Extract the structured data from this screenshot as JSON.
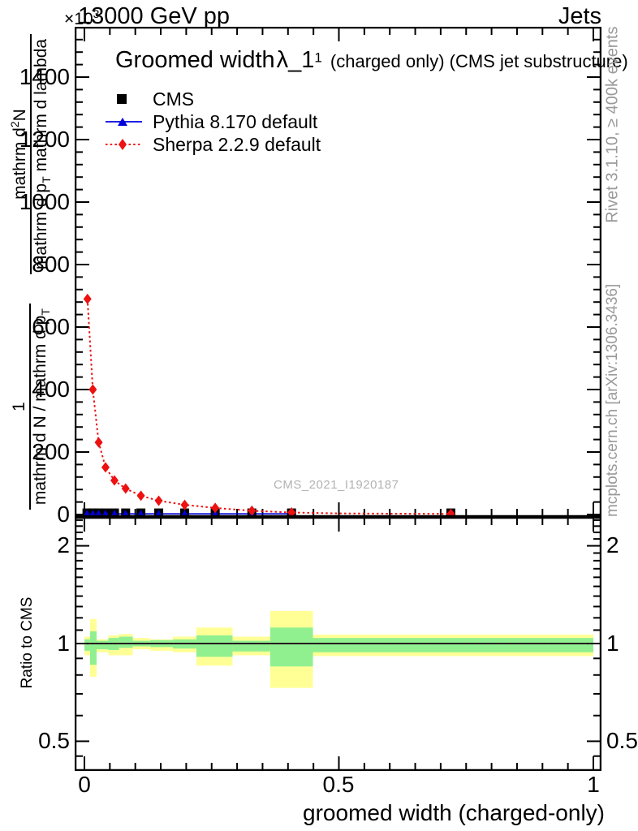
{
  "header": {
    "scale_prefix": "×10",
    "scale_exp": "3",
    "energy": "13000 GeV pp",
    "category": "Jets"
  },
  "plot_title": {
    "main": "Groomed width",
    "symbol": "λ_1",
    "symbol_sup": "1",
    "suffix": "(charged only) (CMS jet substructure)"
  },
  "legend": {
    "items": [
      {
        "label": "CMS",
        "marker": "filled-square",
        "color": "#000000"
      },
      {
        "label": "Pythia 8.170 default",
        "marker": "triangle-on-solid-line",
        "color": "#0000dd"
      },
      {
        "label": "Sherpa 2.2.9 default",
        "marker": "diamond-on-dotted-line",
        "color": "#ee1111"
      }
    ]
  },
  "watermark": "CMS_2021_I1920187",
  "side_notes": {
    "top_right": "Rivet 3.1.10, ≥ 400k events",
    "bottom_right": "mcplots.cern.ch [arXiv:1306.3436]"
  },
  "y_axis": {
    "frac1": {
      "num": "1",
      "den_main": "mathrm d N / mathrm d p",
      "den_sub": "T"
    },
    "frac2": {
      "num_a": "mathrm d",
      "num_sup": "2",
      "num_b": "N",
      "den_a": "mathrm d p",
      "den_sub": "T",
      "den_b": "mathrm d lambda"
    },
    "tick_labels": [
      "1400",
      "1200",
      "1000",
      "800",
      "600",
      "400",
      "200",
      "0"
    ]
  },
  "ratio_axis": {
    "label": "Ratio to CMS",
    "tick_labels": [
      "2",
      "1",
      "0.5"
    ]
  },
  "x_axis": {
    "label": "groomed width (charged-only)",
    "tick_labels": [
      "0",
      "0.5",
      "1"
    ]
  },
  "chart_data": [
    {
      "type": "scatter",
      "panel": "main",
      "title": "Groomed width λ_1^1 (charged only) (CMS jet substructure)",
      "xlabel": "groomed width (charged-only)",
      "ylabel": "1/(dN/dp_T) d²N/(dp_T dlambda), values in ×10³",
      "xlim": [
        -0.019,
        1.016
      ],
      "ylim": [
        0,
        1560
      ],
      "x_ticks_major": [
        0,
        0.5,
        1
      ],
      "x_tick_minor_step": 0.05,
      "y_ticks_major": [
        0,
        200,
        400,
        600,
        800,
        1000,
        1200,
        1400
      ],
      "y_tick_minor_step": 40,
      "grid": false,
      "legend_position": "top-left-inside",
      "series": [
        {
          "name": "CMS",
          "marker": "square",
          "color": "#000000",
          "x": [
            0.005,
            0.0165,
            0.028,
            0.0415,
            0.059,
            0.081,
            0.111,
            0.146,
            0.197,
            0.257,
            0.329,
            0.407,
            0.72
          ],
          "y": [
            5,
            5,
            5,
            5,
            5,
            5,
            5,
            5,
            5,
            5,
            5,
            5,
            5
          ]
        },
        {
          "name": "Pythia 8.170 default",
          "marker": "triangle",
          "color": "#0000dd",
          "x": [
            0.005,
            0.0165,
            0.028,
            0.0415,
            0.059,
            0.081,
            0.111,
            0.146,
            0.197,
            0.257,
            0.329,
            0.407,
            0.72
          ],
          "y": [
            2,
            2,
            2,
            2,
            2,
            2,
            2,
            2,
            2,
            2,
            2,
            2,
            2
          ],
          "line": {
            "style": "solid",
            "x": [
              0.005,
              0.0165,
              0.028,
              0.0415,
              0.059,
              0.081,
              0.111,
              0.146,
              0.197,
              0.257,
              0.329,
              0.407
            ],
            "y": [
              2,
              2,
              2,
              2,
              2,
              2,
              2,
              2,
              2,
              2,
              2,
              2
            ]
          }
        },
        {
          "name": "Sherpa 2.2.9 default",
          "marker": "diamond",
          "color": "#ee1111",
          "x": [
            0.006,
            0.0165,
            0.028,
            0.0415,
            0.059,
            0.081,
            0.111,
            0.146,
            0.197,
            0.257,
            0.329,
            0.407,
            0.72
          ],
          "y": [
            690,
            400,
            231,
            151,
            109,
            83,
            60,
            44,
            31,
            21,
            12,
            6.5,
            2
          ],
          "line": {
            "style": "dotted",
            "x": [
              0.006,
              0.0165,
              0.028,
              0.0415,
              0.059,
              0.081,
              0.111,
              0.146,
              0.197,
              0.257,
              0.329,
              0.407,
              0.5,
              0.62,
              0.72
            ],
            "y": [
              690,
              400,
              231,
              151,
              109,
              83,
              60,
              44,
              31,
              21,
              12,
              6.5,
              3.5,
              2.5,
              2
            ]
          }
        }
      ]
    },
    {
      "type": "ratio-bands",
      "panel": "ratio",
      "ylabel": "Ratio to CMS",
      "yscale": "log",
      "ylim": [
        0.405,
        2.455
      ],
      "y_ticks_major": [
        0.5,
        1,
        2
      ],
      "y_ticks_minor": [
        0.45,
        0.6,
        0.7,
        0.8,
        0.9,
        1.1,
        1.2,
        1.3,
        1.4,
        1.5,
        1.6,
        1.7,
        1.8,
        1.9,
        2.1,
        2.2,
        2.3,
        2.4
      ],
      "reference_line": 1,
      "band_colors": {
        "yellow": "#ffff96",
        "green": "#90f090"
      },
      "bands": [
        {
          "x0": 0.0,
          "x1": 0.011,
          "yellow": [
            0.92,
            1.05
          ],
          "green": [
            0.95,
            1.03
          ]
        },
        {
          "x0": 0.011,
          "x1": 0.024,
          "yellow": [
            0.79,
            1.19
          ],
          "green": [
            0.86,
            1.09
          ]
        },
        {
          "x0": 0.024,
          "x1": 0.047,
          "yellow": [
            0.94,
            1.03
          ],
          "green": [
            0.96,
            1.02
          ]
        },
        {
          "x0": 0.047,
          "x1": 0.068,
          "yellow": [
            0.92,
            1.06
          ],
          "green": [
            0.955,
            1.04
          ]
        },
        {
          "x0": 0.068,
          "x1": 0.095,
          "yellow": [
            0.92,
            1.07
          ],
          "green": [
            0.97,
            1.05
          ]
        },
        {
          "x0": 0.095,
          "x1": 0.129,
          "yellow": [
            0.96,
            1.04
          ],
          "green": [
            0.98,
            1.02
          ]
        },
        {
          "x0": 0.129,
          "x1": 0.174,
          "yellow": [
            0.95,
            1.03
          ],
          "green": [
            0.975,
            1.025
          ]
        },
        {
          "x0": 0.174,
          "x1": 0.22,
          "yellow": [
            0.94,
            1.05
          ],
          "green": [
            0.965,
            1.03
          ]
        },
        {
          "x0": 0.22,
          "x1": 0.291,
          "yellow": [
            0.855,
            1.12
          ],
          "green": [
            0.91,
            1.06
          ]
        },
        {
          "x0": 0.291,
          "x1": 0.365,
          "yellow": [
            0.92,
            1.05
          ],
          "green": [
            0.945,
            1.02
          ]
        },
        {
          "x0": 0.365,
          "x1": 0.449,
          "yellow": [
            0.73,
            1.26
          ],
          "green": [
            0.85,
            1.12
          ]
        },
        {
          "x0": 0.449,
          "x1": 1.0,
          "yellow": [
            0.915,
            1.065
          ],
          "green": [
            0.94,
            1.04
          ]
        }
      ],
      "lines": [
        {
          "name": "Pythia 8.170 default",
          "color": "#0000dd",
          "style": "solid",
          "y": 1.0
        },
        {
          "name": "Sherpa 2.2.9 default",
          "color": "#ee1111",
          "style": "dotted",
          "y": 1.0
        }
      ]
    }
  ]
}
